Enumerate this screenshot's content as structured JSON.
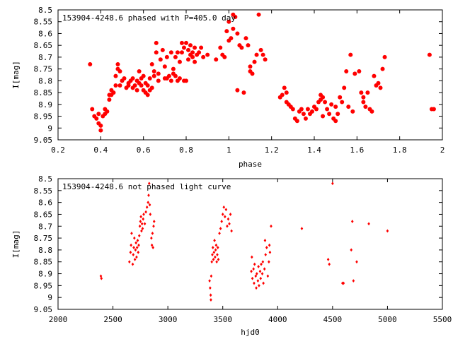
{
  "chart_data": [
    {
      "type": "scatter",
      "title": "153904-4248.6 phased with P=405.0 day",
      "xlabel": "phase",
      "ylabel": "I[mag]",
      "xlim": [
        0.2,
        2.0
      ],
      "ylim": [
        8.5,
        9.05
      ],
      "y_inverted": true,
      "grid": false,
      "marker_color": "#ff0000",
      "marker": "filled-circle",
      "x_ticks": [
        0.2,
        0.4,
        0.6,
        0.8,
        1.0,
        1.2,
        1.4,
        1.6,
        1.8,
        2.0
      ],
      "x_tick_labels": [
        "0.2",
        "0.4",
        "0.6",
        "0.8",
        "1",
        "1.2",
        "1.4",
        "1.6",
        "1.8",
        "2"
      ],
      "y_ticks": [
        8.5,
        8.55,
        8.6,
        8.65,
        8.7,
        8.75,
        8.8,
        8.85,
        8.9,
        8.95,
        9.0,
        9.05
      ],
      "y_tick_labels": [
        "8.5",
        "8.55",
        "8.6",
        "8.65",
        "8.7",
        "8.75",
        "8.8",
        "8.85",
        "8.9",
        "8.95",
        "9",
        "9.05"
      ],
      "points": [
        [
          0.35,
          8.73
        ],
        [
          0.36,
          8.92
        ],
        [
          0.37,
          8.95
        ],
        [
          0.38,
          8.96
        ],
        [
          0.39,
          8.94
        ],
        [
          0.39,
          8.98
        ],
        [
          0.4,
          8.99
        ],
        [
          0.4,
          9.01
        ],
        [
          0.41,
          8.95
        ],
        [
          0.42,
          8.94
        ],
        [
          0.42,
          8.92
        ],
        [
          0.43,
          8.93
        ],
        [
          0.44,
          8.88
        ],
        [
          0.44,
          8.86
        ],
        [
          0.45,
          8.84
        ],
        [
          0.45,
          8.86
        ],
        [
          0.46,
          8.85
        ],
        [
          0.47,
          8.82
        ],
        [
          0.47,
          8.78
        ],
        [
          0.48,
          8.75
        ],
        [
          0.48,
          8.73
        ],
        [
          0.49,
          8.76
        ],
        [
          0.49,
          8.82
        ],
        [
          0.5,
          8.8
        ],
        [
          0.51,
          8.79
        ],
        [
          0.52,
          8.83
        ],
        [
          0.53,
          8.82
        ],
        [
          0.53,
          8.81
        ],
        [
          0.54,
          8.8
        ],
        [
          0.55,
          8.79
        ],
        [
          0.55,
          8.83
        ],
        [
          0.56,
          8.82
        ],
        [
          0.57,
          8.84
        ],
        [
          0.57,
          8.8
        ],
        [
          0.58,
          8.81
        ],
        [
          0.58,
          8.76
        ],
        [
          0.59,
          8.79
        ],
        [
          0.59,
          8.82
        ],
        [
          0.6,
          8.78
        ],
        [
          0.6,
          8.84
        ],
        [
          0.61,
          8.85
        ],
        [
          0.61,
          8.81
        ],
        [
          0.62,
          8.82
        ],
        [
          0.62,
          8.86
        ],
        [
          0.63,
          8.84
        ],
        [
          0.63,
          8.79
        ],
        [
          0.64,
          8.83
        ],
        [
          0.64,
          8.73
        ],
        [
          0.65,
          8.78
        ],
        [
          0.65,
          8.76
        ],
        [
          0.66,
          8.68
        ],
        [
          0.66,
          8.64
        ],
        [
          0.67,
          8.8
        ],
        [
          0.67,
          8.77
        ],
        [
          0.68,
          8.71
        ],
        [
          0.69,
          8.67
        ],
        [
          0.7,
          8.74
        ],
        [
          0.7,
          8.79
        ],
        [
          0.71,
          8.79
        ],
        [
          0.71,
          8.7
        ],
        [
          0.72,
          8.78
        ],
        [
          0.73,
          8.68
        ],
        [
          0.73,
          8.8
        ],
        [
          0.74,
          8.75
        ],
        [
          0.74,
          8.77
        ],
        [
          0.75,
          8.78
        ],
        [
          0.75,
          8.7
        ],
        [
          0.76,
          8.8
        ],
        [
          0.76,
          8.68
        ],
        [
          0.77,
          8.79
        ],
        [
          0.77,
          8.72
        ],
        [
          0.78,
          8.64
        ],
        [
          0.78,
          8.68
        ],
        [
          0.79,
          8.8
        ],
        [
          0.79,
          8.66
        ],
        [
          0.8,
          8.64
        ],
        [
          0.8,
          8.8
        ],
        [
          0.81,
          8.71
        ],
        [
          0.81,
          8.67
        ],
        [
          0.82,
          8.65
        ],
        [
          0.82,
          8.69
        ],
        [
          0.83,
          8.7
        ],
        [
          0.83,
          8.68
        ],
        [
          0.84,
          8.72
        ],
        [
          0.84,
          8.66
        ],
        [
          0.85,
          8.69
        ],
        [
          0.86,
          8.68
        ],
        [
          0.87,
          8.66
        ],
        [
          0.88,
          8.7
        ],
        [
          0.9,
          8.69
        ],
        [
          0.94,
          8.71
        ],
        [
          0.96,
          8.66
        ],
        [
          0.97,
          8.69
        ],
        [
          0.98,
          8.7
        ],
        [
          0.99,
          8.59
        ],
        [
          1.0,
          8.63
        ],
        [
          1.0,
          8.55
        ],
        [
          1.01,
          8.62
        ],
        [
          1.02,
          8.58
        ],
        [
          1.02,
          8.52
        ],
        [
          1.03,
          8.53
        ],
        [
          1.04,
          8.6
        ],
        [
          1.04,
          8.84
        ],
        [
          1.05,
          8.65
        ],
        [
          1.06,
          8.66
        ],
        [
          1.07,
          8.85
        ],
        [
          1.08,
          8.62
        ],
        [
          1.09,
          8.65
        ],
        [
          1.1,
          8.76
        ],
        [
          1.1,
          8.74
        ],
        [
          1.11,
          8.77
        ],
        [
          1.12,
          8.72
        ],
        [
          1.13,
          8.69
        ],
        [
          1.14,
          8.52
        ],
        [
          1.15,
          8.67
        ],
        [
          1.16,
          8.69
        ],
        [
          1.17,
          8.71
        ],
        [
          1.24,
          8.87
        ],
        [
          1.25,
          8.86
        ],
        [
          1.26,
          8.83
        ],
        [
          1.27,
          8.89
        ],
        [
          1.27,
          8.85
        ],
        [
          1.28,
          8.9
        ],
        [
          1.29,
          8.91
        ],
        [
          1.3,
          8.92
        ],
        [
          1.31,
          8.96
        ],
        [
          1.32,
          8.97
        ],
        [
          1.33,
          8.93
        ],
        [
          1.34,
          8.92
        ],
        [
          1.35,
          8.94
        ],
        [
          1.36,
          8.96
        ],
        [
          1.37,
          8.92
        ],
        [
          1.38,
          8.94
        ],
        [
          1.39,
          8.93
        ],
        [
          1.4,
          8.91
        ],
        [
          1.41,
          8.92
        ],
        [
          1.42,
          8.89
        ],
        [
          1.43,
          8.88
        ],
        [
          1.43,
          8.86
        ],
        [
          1.44,
          8.87
        ],
        [
          1.44,
          8.95
        ],
        [
          1.45,
          8.89
        ],
        [
          1.46,
          8.92
        ],
        [
          1.47,
          8.94
        ],
        [
          1.48,
          8.9
        ],
        [
          1.49,
          8.96
        ],
        [
          1.5,
          8.97
        ],
        [
          1.5,
          8.91
        ],
        [
          1.51,
          8.94
        ],
        [
          1.52,
          8.87
        ],
        [
          1.53,
          8.89
        ],
        [
          1.54,
          8.83
        ],
        [
          1.55,
          8.76
        ],
        [
          1.56,
          8.91
        ],
        [
          1.57,
          8.69
        ],
        [
          1.58,
          8.93
        ],
        [
          1.59,
          8.77
        ],
        [
          1.61,
          8.76
        ],
        [
          1.62,
          8.85
        ],
        [
          1.63,
          8.87
        ],
        [
          1.63,
          8.89
        ],
        [
          1.64,
          8.91
        ],
        [
          1.65,
          8.85
        ],
        [
          1.66,
          8.92
        ],
        [
          1.67,
          8.93
        ],
        [
          1.68,
          8.78
        ],
        [
          1.69,
          8.82
        ],
        [
          1.7,
          8.81
        ],
        [
          1.71,
          8.83
        ],
        [
          1.72,
          8.75
        ],
        [
          1.73,
          8.7
        ],
        [
          1.94,
          8.69
        ],
        [
          1.95,
          8.92
        ],
        [
          1.96,
          8.92
        ]
      ]
    },
    {
      "type": "scatter",
      "title": "153904-4248.6 not phased light curve",
      "xlabel": "hjd0",
      "ylabel": "I[mag]",
      "xlim": [
        2000,
        5500
      ],
      "ylim": [
        8.5,
        9.05
      ],
      "y_inverted": true,
      "grid": false,
      "marker_color": "#ff0000",
      "marker": "small-diamond",
      "x_ticks": [
        2000,
        2500,
        3000,
        3500,
        4000,
        4500,
        5000,
        5500
      ],
      "x_tick_labels": [
        "2000",
        "2500",
        "3000",
        "3500",
        "4000",
        "4500",
        "5000",
        "5500"
      ],
      "y_ticks": [
        8.5,
        8.55,
        8.6,
        8.65,
        8.7,
        8.75,
        8.8,
        8.85,
        8.9,
        8.95,
        9.0,
        9.05
      ],
      "y_tick_labels": [
        "8.5",
        "8.55",
        "8.6",
        "8.65",
        "8.7",
        "8.75",
        "8.8",
        "8.85",
        "8.9",
        "8.95",
        "9",
        "9.05"
      ],
      "points": [
        [
          2390,
          8.91
        ],
        [
          2395,
          8.92
        ],
        [
          2650,
          8.85
        ],
        [
          2660,
          8.81
        ],
        [
          2665,
          8.78
        ],
        [
          2670,
          8.73
        ],
        [
          2680,
          8.86
        ],
        [
          2685,
          8.82
        ],
        [
          2690,
          8.79
        ],
        [
          2695,
          8.75
        ],
        [
          2700,
          8.84
        ],
        [
          2705,
          8.8
        ],
        [
          2710,
          8.77
        ],
        [
          2715,
          8.83
        ],
        [
          2720,
          8.79
        ],
        [
          2725,
          8.76
        ],
        [
          2730,
          8.81
        ],
        [
          2735,
          8.78
        ],
        [
          2740,
          8.74
        ],
        [
          2745,
          8.7
        ],
        [
          2750,
          8.68
        ],
        [
          2755,
          8.66
        ],
        [
          2760,
          8.72
        ],
        [
          2765,
          8.69
        ],
        [
          2770,
          8.71
        ],
        [
          2775,
          8.67
        ],
        [
          2780,
          8.65
        ],
        [
          2790,
          8.69
        ],
        [
          2800,
          8.64
        ],
        [
          2810,
          8.62
        ],
        [
          2820,
          8.6
        ],
        [
          2825,
          8.57
        ],
        [
          2830,
          8.52
        ],
        [
          2835,
          8.61
        ],
        [
          2840,
          8.65
        ],
        [
          2850,
          8.75
        ],
        [
          2855,
          8.78
        ],
        [
          2860,
          8.73
        ],
        [
          2865,
          8.79
        ],
        [
          2870,
          8.7
        ],
        [
          2875,
          8.68
        ],
        [
          3380,
          8.93
        ],
        [
          3385,
          8.96
        ],
        [
          3390,
          8.99
        ],
        [
          3392,
          9.01
        ],
        [
          3395,
          8.91
        ],
        [
          3400,
          8.85
        ],
        [
          3405,
          8.82
        ],
        [
          3410,
          8.79
        ],
        [
          3415,
          8.84
        ],
        [
          3420,
          8.81
        ],
        [
          3425,
          8.76
        ],
        [
          3430,
          8.83
        ],
        [
          3435,
          8.8
        ],
        [
          3440,
          8.78
        ],
        [
          3445,
          8.85
        ],
        [
          3450,
          8.82
        ],
        [
          3455,
          8.79
        ],
        [
          3460,
          8.84
        ],
        [
          3470,
          8.73
        ],
        [
          3480,
          8.71
        ],
        [
          3490,
          8.68
        ],
        [
          3500,
          8.65
        ],
        [
          3510,
          8.62
        ],
        [
          3520,
          8.66
        ],
        [
          3530,
          8.63
        ],
        [
          3540,
          8.7
        ],
        [
          3550,
          8.67
        ],
        [
          3560,
          8.69
        ],
        [
          3570,
          8.65
        ],
        [
          3580,
          8.72
        ],
        [
          3760,
          8.89
        ],
        [
          3765,
          8.83
        ],
        [
          3770,
          8.92
        ],
        [
          3780,
          8.88
        ],
        [
          3785,
          8.94
        ],
        [
          3790,
          8.86
        ],
        [
          3800,
          8.91
        ],
        [
          3805,
          8.96
        ],
        [
          3810,
          8.9
        ],
        [
          3820,
          8.93
        ],
        [
          3825,
          8.87
        ],
        [
          3830,
          8.95
        ],
        [
          3840,
          8.89
        ],
        [
          3845,
          8.92
        ],
        [
          3850,
          8.86
        ],
        [
          3860,
          8.9
        ],
        [
          3865,
          8.85
        ],
        [
          3870,
          8.94
        ],
        [
          3880,
          8.88
        ],
        [
          3885,
          8.76
        ],
        [
          3890,
          8.82
        ],
        [
          3900,
          8.79
        ],
        [
          3910,
          8.91
        ],
        [
          3920,
          8.85
        ],
        [
          3925,
          8.78
        ],
        [
          3930,
          8.81
        ],
        [
          3940,
          8.7
        ],
        [
          4220,
          8.71
        ],
        [
          4460,
          8.84
        ],
        [
          4470,
          8.86
        ],
        [
          4500,
          8.52
        ],
        [
          4590,
          8.94
        ],
        [
          4600,
          8.94
        ],
        [
          4670,
          8.8
        ],
        [
          4680,
          8.68
        ],
        [
          4690,
          8.93
        ],
        [
          4720,
          8.85
        ],
        [
          4830,
          8.69
        ],
        [
          5000,
          8.72
        ]
      ]
    }
  ]
}
